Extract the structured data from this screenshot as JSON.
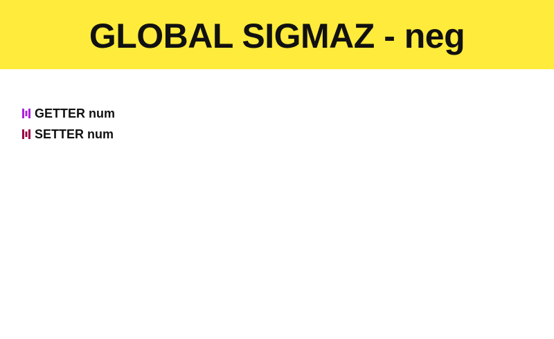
{
  "header": {
    "title": "GLOBAL SIGMAZ - neg",
    "background": "#ffeb3b"
  },
  "items": [
    {
      "label": "GETTER num",
      "icon": "getter-bracket-icon",
      "icon_color": "#aa22dd"
    },
    {
      "label": "SETTER num",
      "icon": "setter-bracket-icon",
      "icon_color": "#990044"
    }
  ]
}
